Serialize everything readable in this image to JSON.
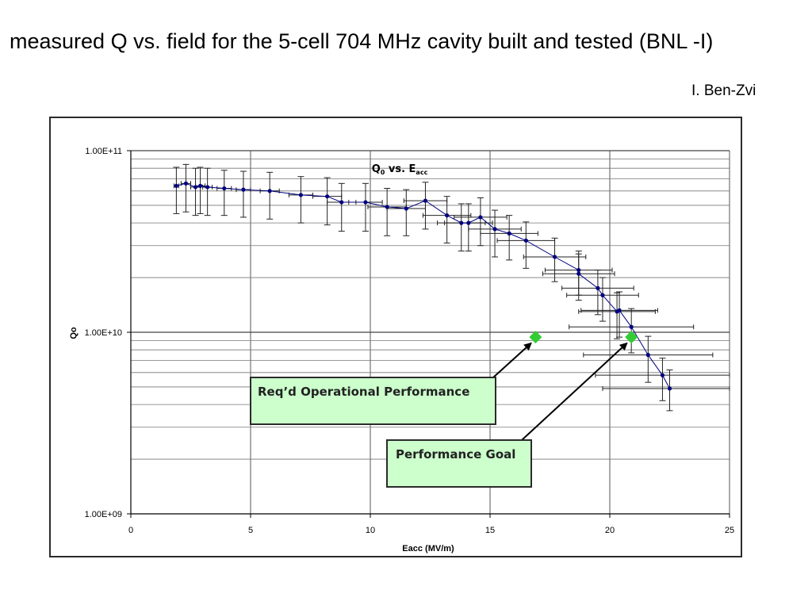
{
  "slide": {
    "title": "measured Q vs. field for the 5-cell 704 MHz cavity built and tested (BNL -I)",
    "author": "I. Ben-Zvi"
  },
  "annotations": {
    "operational": "Req’d Operational Performance",
    "goal": "Performance Goal"
  },
  "colors": {
    "data_marker": "#000080",
    "target_marker": "#33cc33",
    "annotation_fill": "#ccffcc"
  },
  "chart_data": {
    "type": "scatter",
    "title_main": "Q",
    "title_sub1": "0",
    "title_mid": " vs. E",
    "title_sub2": "acc",
    "xlabel": "Eacc (MV/m)",
    "ylabel": "Qo",
    "xlim": [
      0,
      25
    ],
    "ylim": [
      1000000000.0,
      100000000000.0
    ],
    "yscale": "log",
    "grid": true,
    "x_ticks": [
      "0",
      "5",
      "10",
      "15",
      "20",
      "25"
    ],
    "y_ticks": [
      "1.00E+09",
      "1.00E+10",
      "1.00E+11"
    ],
    "series": [
      {
        "points": [
          {
            "x": 1.9,
            "y": 64000000000.0,
            "xerr": 0.1,
            "yerr_lo": 19000000000.0,
            "yerr_hi": 17000000000.0
          },
          {
            "x": 2.3,
            "y": 66000000000.0,
            "xerr": 0.2,
            "yerr_lo": 20000000000.0,
            "yerr_hi": 18000000000.0
          },
          {
            "x": 2.7,
            "y": 63000000000.0,
            "xerr": 0.2,
            "yerr_lo": 19000000000.0,
            "yerr_hi": 17000000000.0
          },
          {
            "x": 2.9,
            "y": 64000000000.0,
            "xerr": 0.2,
            "yerr_lo": 19000000000.0,
            "yerr_hi": 17000000000.0
          },
          {
            "x": 3.2,
            "y": 63000000000.0,
            "xerr": 0.2,
            "yerr_lo": 19000000000.0,
            "yerr_hi": 17000000000.0
          },
          {
            "x": 3.9,
            "y": 62000000000.0,
            "xerr": 0.3,
            "yerr_lo": 18000000000.0,
            "yerr_hi": 16000000000.0
          },
          {
            "x": 4.7,
            "y": 61000000000.0,
            "xerr": 0.3,
            "yerr_lo": 18000000000.0,
            "yerr_hi": 16000000000.0
          },
          {
            "x": 5.8,
            "y": 60000000000.0,
            "xerr": 0.4,
            "yerr_lo": 18000000000.0,
            "yerr_hi": 16000000000.0
          },
          {
            "x": 7.1,
            "y": 57000000000.0,
            "xerr": 0.5,
            "yerr_lo": 17000000000.0,
            "yerr_hi": 15000000000.0
          },
          {
            "x": 8.2,
            "y": 56000000000.0,
            "xerr": 0.6,
            "yerr_lo": 17000000000.0,
            "yerr_hi": 15000000000.0
          },
          {
            "x": 8.8,
            "y": 52000000000.0,
            "xerr": 0.6,
            "yerr_lo": 16000000000.0,
            "yerr_hi": 14000000000.0
          },
          {
            "x": 9.8,
            "y": 52000000000.0,
            "xerr": 0.7,
            "yerr_lo": 16000000000.0,
            "yerr_hi": 14000000000.0
          },
          {
            "x": 10.7,
            "y": 49000000000.0,
            "xerr": 0.8,
            "yerr_lo": 15000000000.0,
            "yerr_hi": 13000000000.0
          },
          {
            "x": 11.5,
            "y": 48000000000.0,
            "xerr": 0.8,
            "yerr_lo": 14000000000.0,
            "yerr_hi": 13000000000.0
          },
          {
            "x": 12.3,
            "y": 53000000000.0,
            "xerr": 0.9,
            "yerr_lo": 16000000000.0,
            "yerr_hi": 14000000000.0
          },
          {
            "x": 13.2,
            "y": 44000000000.0,
            "xerr": 1.0,
            "yerr_lo": 13000000000.0,
            "yerr_hi": 12000000000.0
          },
          {
            "x": 13.8,
            "y": 40000000000.0,
            "xerr": 1.0,
            "yerr_lo": 12000000000.0,
            "yerr_hi": 11000000000.0
          },
          {
            "x": 14.1,
            "y": 40000000000.0,
            "xerr": 1.0,
            "yerr_lo": 12000000000.0,
            "yerr_hi": 11000000000.0
          },
          {
            "x": 14.6,
            "y": 43000000000.0,
            "xerr": 1.1,
            "yerr_lo": 13000000000.0,
            "yerr_hi": 12000000000.0
          },
          {
            "x": 15.2,
            "y": 37000000000.0,
            "xerr": 1.1,
            "yerr_lo": 11000000000.0,
            "yerr_hi": 10000000000.0
          },
          {
            "x": 15.8,
            "y": 35000000000.0,
            "xerr": 1.2,
            "yerr_lo": 10000000000.0,
            "yerr_hi": 9000000000.0
          },
          {
            "x": 16.5,
            "y": 32000000000.0,
            "xerr": 1.2,
            "yerr_lo": 9500000000.0,
            "yerr_hi": 8500000000.0
          },
          {
            "x": 17.7,
            "y": 26000000000.0,
            "xerr": 1.3,
            "yerr_lo": 7000000000.0,
            "yerr_hi": 7000000000.0
          },
          {
            "x": 18.7,
            "y": 22000000000.0,
            "xerr": 1.4,
            "yerr_lo": 6000000000.0,
            "yerr_hi": 6000000000.0
          },
          {
            "x": 18.7,
            "y": 21000000000.0,
            "xerr": 1.5,
            "yerr_lo": 6000000000.0,
            "yerr_hi": 6000000000.0
          },
          {
            "x": 19.5,
            "y": 17500000000.0,
            "xerr": 1.5,
            "yerr_lo": 5000000000.0,
            "yerr_hi": 4500000000.0
          },
          {
            "x": 19.7,
            "y": 16000000000.0,
            "xerr": 1.5,
            "yerr_lo": 4500000000.0,
            "yerr_hi": 4000000000.0
          },
          {
            "x": 20.3,
            "y": 13000000000.0,
            "xerr": 1.6,
            "yerr_lo": 3800000000.0,
            "yerr_hi": 3500000000.0
          },
          {
            "x": 20.4,
            "y": 13200000000.0,
            "xerr": 1.6,
            "yerr_lo": 3800000000.0,
            "yerr_hi": 3500000000.0
          },
          {
            "x": 20.9,
            "y": 10700000000.0,
            "xerr": 2.6,
            "yerr_lo": 3000000000.0,
            "yerr_hi": 2800000000.0
          },
          {
            "x": 21.6,
            "y": 7500000000.0,
            "xerr": 2.7,
            "yerr_lo": 2200000000.0,
            "yerr_hi": 2000000000.0
          },
          {
            "x": 22.2,
            "y": 5800000000.0,
            "xerr": 2.8,
            "yerr_lo": 1600000000.0,
            "yerr_hi": 1400000000.0
          },
          {
            "x": 22.5,
            "y": 4900000000.0,
            "xerr": 2.8,
            "yerr_lo": 1200000000.0,
            "yerr_hi": 1300000000.0
          }
        ]
      }
    ],
    "targets": [
      {
        "label": "Req’d Operational Performance",
        "x": 16.9,
        "y": 9400000000.0
      },
      {
        "label": "Performance Goal",
        "x": 20.9,
        "y": 9400000000.0
      }
    ]
  }
}
